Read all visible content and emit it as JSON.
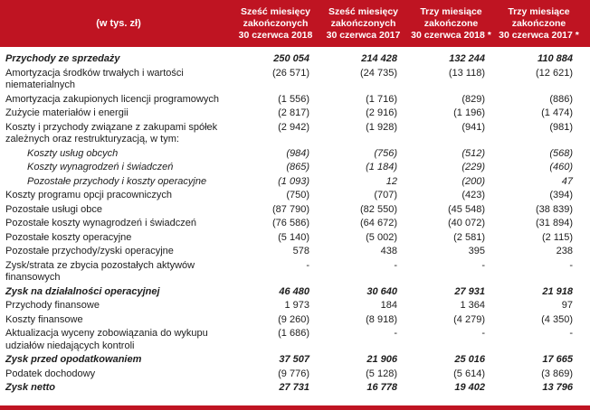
{
  "colors": {
    "accent_red": "#bf1422",
    "header_text": "#ffffff",
    "body_text": "#1d1d1d"
  },
  "table": {
    "unit_header": "(w tys. zł)",
    "columns": [
      {
        "lines": [
          "Sześć miesięcy",
          "zakończonych",
          "30 czerwca 2018"
        ]
      },
      {
        "lines": [
          "Sześć miesięcy",
          "zakończonych",
          "30 czerwca 2017"
        ]
      },
      {
        "lines": [
          "Trzy miesiące",
          "zakończone",
          "30 czerwca 2018 *"
        ]
      },
      {
        "lines": [
          "Trzy miesiące",
          "zakończone",
          "30 czerwca 2017 *"
        ]
      }
    ],
    "rows": [
      {
        "label": "Przychody ze sprzedaży",
        "style": "bold",
        "values": [
          "250 054",
          "214 428",
          "132 244",
          "110 884"
        ]
      },
      {
        "label": "Amortyzacja środków trwałych i wartości niematerialnych",
        "style": "normal",
        "values": [
          "(26 571)",
          "(24 735)",
          "(13 118)",
          "(12 621)"
        ]
      },
      {
        "label": "Amortyzacja zakupionych licencji programowych",
        "style": "normal",
        "values": [
          "(1 556)",
          "(1 716)",
          "(829)",
          "(886)"
        ]
      },
      {
        "label": "Zużycie materiałów i energii",
        "style": "normal",
        "values": [
          "(2 817)",
          "(2 916)",
          "(1 196)",
          "(1 474)"
        ]
      },
      {
        "label": "Koszty i przychody związane z zakupami spółek zależnych oraz restrukturyzacją, w tym:",
        "style": "normal",
        "values": [
          "(2 942)",
          "(1 928)",
          "(941)",
          "(981)"
        ]
      },
      {
        "label": "Koszty usług obcych",
        "style": "sub",
        "values": [
          "(984)",
          "(756)",
          "(512)",
          "(568)"
        ]
      },
      {
        "label": "Koszty wynagrodzeń i świadczeń",
        "style": "sub",
        "values": [
          "(865)",
          "(1 184)",
          "(229)",
          "(460)"
        ]
      },
      {
        "label": "Pozostałe przychody i koszty operacyjne",
        "style": "sub",
        "values": [
          "(1 093)",
          "12",
          "(200)",
          "47"
        ]
      },
      {
        "label": "Koszty programu opcji pracowniczych",
        "style": "normal",
        "values": [
          "(750)",
          "(707)",
          "(423)",
          "(394)"
        ]
      },
      {
        "label": "Pozostałe usługi obce",
        "style": "normal",
        "values": [
          "(87 790)",
          "(82 550)",
          "(45 548)",
          "(38 839)"
        ]
      },
      {
        "label": "Pozostałe koszty wynagrodzeń i świadczeń",
        "style": "normal",
        "values": [
          "(76 586)",
          "(64 672)",
          "(40 072)",
          "(31 894)"
        ]
      },
      {
        "label": "Pozostałe koszty operacyjne",
        "style": "normal",
        "values": [
          "(5 140)",
          "(5 002)",
          "(2 581)",
          "(2 115)"
        ]
      },
      {
        "label": "Pozostałe przychody/zyski operacyjne",
        "style": "normal",
        "values": [
          "578",
          "438",
          "395",
          "238"
        ]
      },
      {
        "label": "Zysk/strata ze zbycia pozostałych aktywów finansowych",
        "style": "normal",
        "values": [
          "-",
          "-",
          "-",
          "-"
        ]
      },
      {
        "label": "Zysk na działalności operacyjnej",
        "style": "bold",
        "values": [
          "46 480",
          "30 640",
          "27 931",
          "21 918"
        ]
      },
      {
        "label": "Przychody finansowe",
        "style": "normal",
        "values": [
          "1 973",
          "184",
          "1 364",
          "97"
        ]
      },
      {
        "label": "Koszty finansowe",
        "style": "normal",
        "values": [
          "(9 260)",
          "(8 918)",
          "(4 279)",
          "(4 350)"
        ]
      },
      {
        "label": "Aktualizacja wyceny zobowiązania do wykupu udziałów niedających kontroli",
        "style": "normal",
        "values": [
          "(1 686)",
          "-",
          "-",
          "-"
        ]
      },
      {
        "label": "Zysk przed opodatkowaniem",
        "style": "bold",
        "values": [
          "37 507",
          "21 906",
          "25 016",
          "17 665"
        ]
      },
      {
        "label": "Podatek dochodowy",
        "style": "normal",
        "values": [
          "(9 776)",
          "(5 128)",
          "(5 614)",
          "(3 869)"
        ]
      },
      {
        "label": "Zysk netto",
        "style": "bold",
        "values": [
          "27 731",
          "16 778",
          "19 402",
          "13 796"
        ]
      }
    ]
  }
}
